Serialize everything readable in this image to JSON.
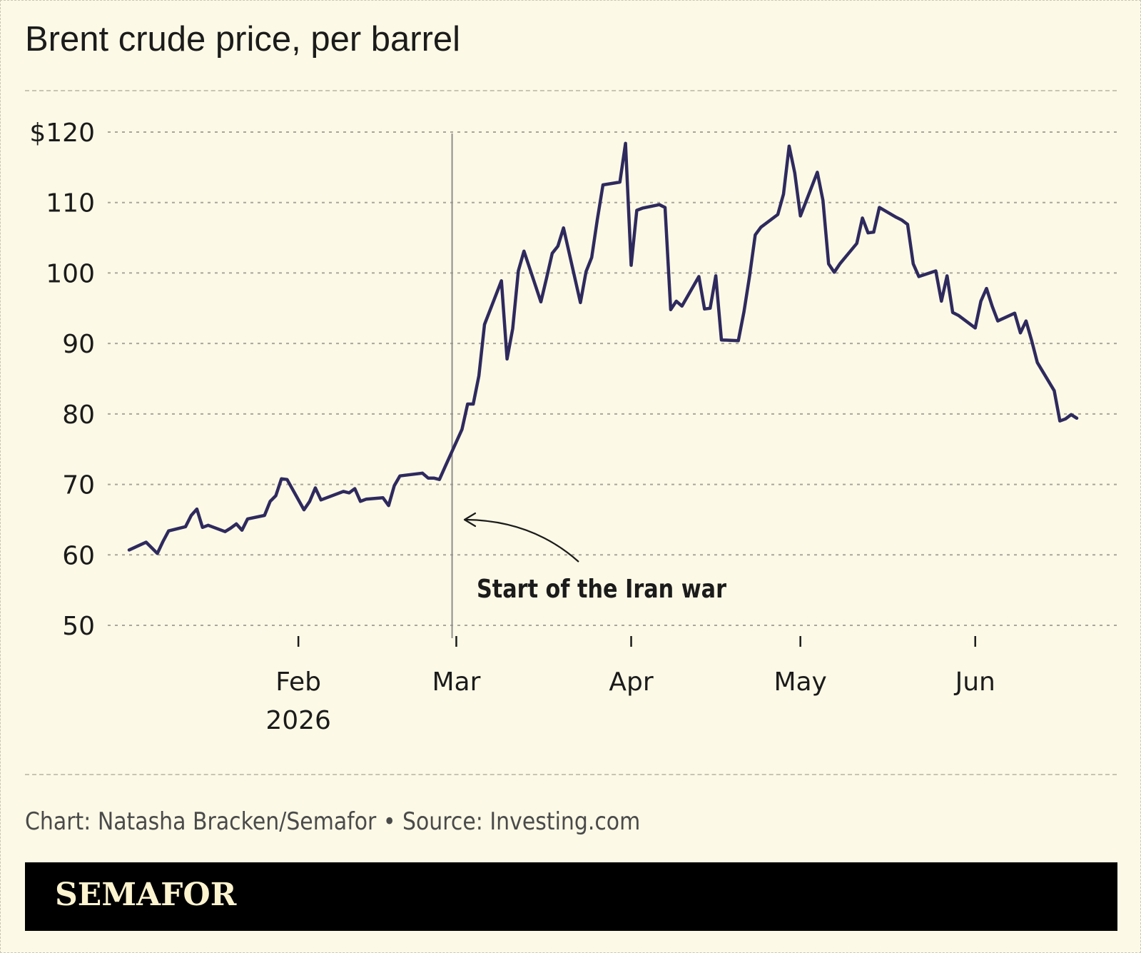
{
  "chart_data": {
    "type": "line",
    "title": "Brent crude price, per barrel",
    "xlabel": "",
    "ylabel": "",
    "ylim": [
      50,
      120
    ],
    "xlim": [
      "2026-01-02",
      "2026-06-19"
    ],
    "y_ticks": [
      {
        "value": 120,
        "label": "$120"
      },
      {
        "value": 110,
        "label": "110"
      },
      {
        "value": 100,
        "label": "100"
      },
      {
        "value": 90,
        "label": "90"
      },
      {
        "value": 80,
        "label": "80"
      },
      {
        "value": 70,
        "label": "70"
      },
      {
        "value": 60,
        "label": "60"
      },
      {
        "value": 50,
        "label": "50"
      }
    ],
    "x_ticks": [
      {
        "date": "2026-02-01",
        "label": "Feb",
        "sublabel": "2026"
      },
      {
        "date": "2026-03-01",
        "label": "Mar"
      },
      {
        "date": "2026-04-01",
        "label": "Apr"
      },
      {
        "date": "2026-05-01",
        "label": "May"
      },
      {
        "date": "2026-06-01",
        "label": "Jun"
      }
    ],
    "grid": true,
    "line_color": "#2e2a5e",
    "series": [
      {
        "x": [
          "2026-01-02",
          "2026-01-05",
          "2026-01-06",
          "2026-01-07",
          "2026-01-08",
          "2026-01-09",
          "2026-01-12",
          "2026-01-13",
          "2026-01-14",
          "2026-01-15",
          "2026-01-16",
          "2026-01-19",
          "2026-01-20",
          "2026-01-21",
          "2026-01-22",
          "2026-01-23",
          "2026-01-26",
          "2026-01-27",
          "2026-01-28",
          "2026-01-29",
          "2026-01-30",
          "2026-02-02",
          "2026-02-03",
          "2026-02-04",
          "2026-02-05",
          "2026-02-06",
          "2026-02-09",
          "2026-02-10",
          "2026-02-11",
          "2026-02-12",
          "2026-02-13",
          "2026-02-16",
          "2026-02-17",
          "2026-02-18",
          "2026-02-19",
          "2026-02-20",
          "2026-02-23",
          "2026-02-24",
          "2026-02-25",
          "2026-02-26",
          "2026-02-27",
          "2026-03-02",
          "2026-03-03",
          "2026-03-04",
          "2026-03-05",
          "2026-03-06",
          "2026-03-09",
          "2026-03-10",
          "2026-03-11",
          "2026-03-12",
          "2026-03-13",
          "2026-03-16",
          "2026-03-17",
          "2026-03-18",
          "2026-03-19",
          "2026-03-20",
          "2026-03-23",
          "2026-03-24",
          "2026-03-25",
          "2026-03-26",
          "2026-03-27",
          "2026-03-30",
          "2026-03-31",
          "2026-04-01",
          "2026-04-02",
          "2026-04-03",
          "2026-04-06",
          "2026-04-07",
          "2026-04-08",
          "2026-04-09",
          "2026-04-10",
          "2026-04-13",
          "2026-04-14",
          "2026-04-15",
          "2026-04-16",
          "2026-04-17",
          "2026-04-20",
          "2026-04-21",
          "2026-04-22",
          "2026-04-23",
          "2026-04-24",
          "2026-04-27",
          "2026-04-28",
          "2026-04-29",
          "2026-04-30",
          "2026-05-01",
          "2026-05-04",
          "2026-05-05",
          "2026-05-06",
          "2026-05-07",
          "2026-05-08",
          "2026-05-11",
          "2026-05-12",
          "2026-05-13",
          "2026-05-14",
          "2026-05-15",
          "2026-05-18",
          "2026-05-19",
          "2026-05-20",
          "2026-05-21",
          "2026-05-22",
          "2026-05-25",
          "2026-05-26",
          "2026-05-27",
          "2026-05-28",
          "2026-05-29",
          "2026-06-01",
          "2026-06-02",
          "2026-06-03",
          "2026-06-04",
          "2026-06-05",
          "2026-06-08",
          "2026-06-09",
          "2026-06-10",
          "2026-06-11",
          "2026-06-12",
          "2026-06-15",
          "2026-06-16",
          "2026-06-17",
          "2026-06-18",
          "2026-06-19"
        ],
        "y": [
          60.7,
          61.8,
          61.0,
          60.2,
          61.9,
          63.4,
          64.0,
          65.6,
          66.5,
          63.9,
          64.2,
          63.3,
          63.8,
          64.4,
          63.5,
          65.1,
          65.6,
          67.6,
          68.4,
          70.8,
          70.7,
          66.4,
          67.6,
          69.5,
          67.8,
          68.1,
          69.0,
          68.8,
          69.4,
          67.6,
          67.9,
          68.1,
          67.0,
          69.8,
          71.2,
          71.3,
          71.6,
          70.9,
          70.9,
          70.7,
          72.5,
          77.8,
          81.4,
          81.4,
          85.4,
          92.7,
          98.9,
          87.8,
          92.1,
          100.3,
          103.1,
          95.9,
          99.3,
          102.8,
          103.8,
          106.4,
          95.8,
          100.2,
          102.2,
          107.6,
          112.5,
          112.9,
          118.4,
          101.1,
          108.9,
          109.2,
          109.7,
          109.3,
          94.8,
          96.0,
          95.3,
          99.5,
          94.9,
          95.0,
          99.6,
          90.5,
          90.4,
          94.5,
          99.6,
          105.4,
          106.5,
          108.3,
          111.2,
          118.0,
          114.2,
          108.1,
          114.3,
          110.3,
          101.3,
          100.1,
          101.3,
          104.2,
          107.8,
          105.7,
          105.8,
          109.3,
          107.9,
          107.5,
          106.9,
          101.3,
          99.5,
          100.3,
          96.0,
          99.6,
          94.4,
          94.0,
          92.2,
          96.0,
          97.8,
          95.3,
          93.2,
          94.3,
          91.5,
          93.2,
          90.4,
          87.3,
          83.3,
          79.0,
          79.3,
          79.9,
          79.4
        ]
      }
    ],
    "annotations": [
      {
        "date": "2026-02-28",
        "text": "Start of the Iran war"
      }
    ]
  },
  "footer": {
    "credit": "Chart: Natasha Bracken/Semafor • Source: Investing.com",
    "brand": "SEMAFOR"
  }
}
